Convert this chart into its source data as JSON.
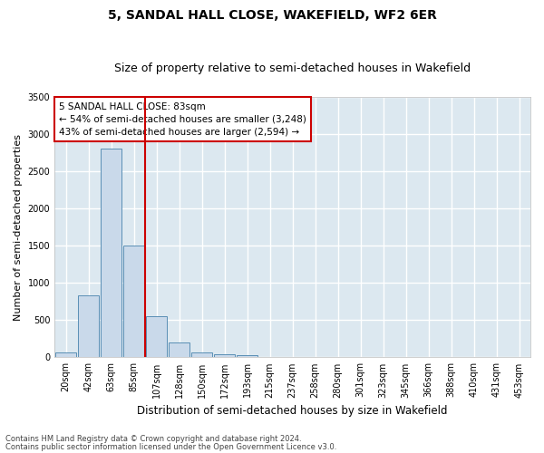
{
  "title": "5, SANDAL HALL CLOSE, WAKEFIELD, WF2 6ER",
  "subtitle": "Size of property relative to semi-detached houses in Wakefield",
  "xlabel": "Distribution of semi-detached houses by size in Wakefield",
  "ylabel": "Number of semi-detached properties",
  "bar_labels": [
    "20sqm",
    "42sqm",
    "63sqm",
    "85sqm",
    "107sqm",
    "128sqm",
    "150sqm",
    "172sqm",
    "193sqm",
    "215sqm",
    "237sqm",
    "258sqm",
    "280sqm",
    "301sqm",
    "323sqm",
    "345sqm",
    "366sqm",
    "388sqm",
    "410sqm",
    "431sqm",
    "453sqm"
  ],
  "bar_values": [
    65,
    830,
    2800,
    1500,
    550,
    200,
    65,
    45,
    25,
    0,
    0,
    0,
    0,
    0,
    0,
    0,
    0,
    0,
    0,
    0,
    0
  ],
  "bar_color": "#c9d9ea",
  "bar_edge_color": "#5a8fb5",
  "vline_color": "#cc0000",
  "vline_pos": 3.5,
  "ylim": [
    0,
    3500
  ],
  "yticks": [
    0,
    500,
    1000,
    1500,
    2000,
    2500,
    3000,
    3500
  ],
  "annotation_text_line1": "5 SANDAL HALL CLOSE: 83sqm",
  "annotation_text_line2": "← 54% of semi-detached houses are smaller (3,248)",
  "annotation_text_line3": "43% of semi-detached houses are larger (2,594) →",
  "footer_line1": "Contains HM Land Registry data © Crown copyright and database right 2024.",
  "footer_line2": "Contains public sector information licensed under the Open Government Licence v3.0.",
  "fig_bg_color": "#ffffff",
  "ax_bg_color": "#dce8f0",
  "grid_color": "#ffffff",
  "title_fontsize": 10,
  "subtitle_fontsize": 9,
  "tick_fontsize": 7,
  "ylabel_fontsize": 8,
  "xlabel_fontsize": 8.5,
  "footer_fontsize": 6,
  "annot_fontsize": 7.5
}
